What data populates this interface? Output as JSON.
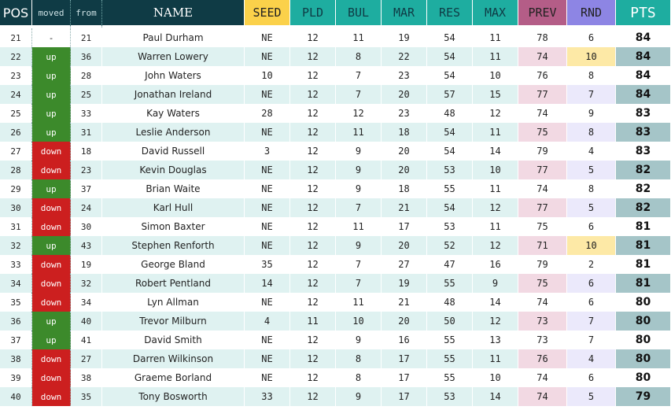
{
  "headers": {
    "pos": "POS",
    "moved": "moved",
    "from": "from",
    "name": "NAME",
    "seed": "SEED",
    "pld": "PLD",
    "bul": "BUL",
    "mar": "MAR",
    "res": "RES",
    "max": "MAX",
    "prev": "PREV",
    "rnd": "RND",
    "pts": "PTS"
  },
  "colors": {
    "header_dark": "#0f3b45",
    "seed": "#fbd14a",
    "teal": "#1eada0",
    "prev": "#b45d87",
    "rnd": "#8d85e4",
    "up": "#3c8a2b",
    "down": "#cc1f1f",
    "row_alt": "#dff2f1",
    "rnd_highlight": "#fde9a6"
  },
  "rows": [
    {
      "pos": "21",
      "moved": "-",
      "from": "21",
      "name": "Paul Durham",
      "seed": "NE",
      "pld": "12",
      "bul": "11",
      "mar": "19",
      "res": "54",
      "max": "11",
      "prev": "78",
      "rnd": "6",
      "pts": "84"
    },
    {
      "pos": "22",
      "moved": "up",
      "from": "36",
      "name": "Warren Lowery",
      "seed": "NE",
      "pld": "12",
      "bul": "8",
      "mar": "22",
      "res": "54",
      "max": "11",
      "prev": "74",
      "rnd": "10",
      "pts": "84"
    },
    {
      "pos": "23",
      "moved": "up",
      "from": "28",
      "name": "John Waters",
      "seed": "10",
      "pld": "12",
      "bul": "7",
      "mar": "23",
      "res": "54",
      "max": "10",
      "prev": "76",
      "rnd": "8",
      "pts": "84"
    },
    {
      "pos": "24",
      "moved": "up",
      "from": "25",
      "name": "Jonathan Ireland",
      "seed": "NE",
      "pld": "12",
      "bul": "7",
      "mar": "20",
      "res": "57",
      "max": "15",
      "prev": "77",
      "rnd": "7",
      "pts": "84"
    },
    {
      "pos": "25",
      "moved": "up",
      "from": "33",
      "name": "Kay Waters",
      "seed": "28",
      "pld": "12",
      "bul": "12",
      "mar": "23",
      "res": "48",
      "max": "12",
      "prev": "74",
      "rnd": "9",
      "pts": "83"
    },
    {
      "pos": "26",
      "moved": "up",
      "from": "31",
      "name": "Leslie Anderson",
      "seed": "NE",
      "pld": "12",
      "bul": "11",
      "mar": "18",
      "res": "54",
      "max": "11",
      "prev": "75",
      "rnd": "8",
      "pts": "83"
    },
    {
      "pos": "27",
      "moved": "down",
      "from": "18",
      "name": "David Russell",
      "seed": "3",
      "pld": "12",
      "bul": "9",
      "mar": "20",
      "res": "54",
      "max": "14",
      "prev": "79",
      "rnd": "4",
      "pts": "83"
    },
    {
      "pos": "28",
      "moved": "down",
      "from": "23",
      "name": "Kevin Douglas",
      "seed": "NE",
      "pld": "12",
      "bul": "9",
      "mar": "20",
      "res": "53",
      "max": "10",
      "prev": "77",
      "rnd": "5",
      "pts": "82"
    },
    {
      "pos": "29",
      "moved": "up",
      "from": "37",
      "name": "Brian Waite",
      "seed": "NE",
      "pld": "12",
      "bul": "9",
      "mar": "18",
      "res": "55",
      "max": "11",
      "prev": "74",
      "rnd": "8",
      "pts": "82"
    },
    {
      "pos": "30",
      "moved": "down",
      "from": "24",
      "name": "Karl Hull",
      "seed": "NE",
      "pld": "12",
      "bul": "7",
      "mar": "21",
      "res": "54",
      "max": "12",
      "prev": "77",
      "rnd": "5",
      "pts": "82"
    },
    {
      "pos": "31",
      "moved": "down",
      "from": "30",
      "name": "Simon Baxter",
      "seed": "NE",
      "pld": "12",
      "bul": "11",
      "mar": "17",
      "res": "53",
      "max": "11",
      "prev": "75",
      "rnd": "6",
      "pts": "81"
    },
    {
      "pos": "32",
      "moved": "up",
      "from": "43",
      "name": "Stephen Renforth",
      "seed": "NE",
      "pld": "12",
      "bul": "9",
      "mar": "20",
      "res": "52",
      "max": "12",
      "prev": "71",
      "rnd": "10",
      "pts": "81"
    },
    {
      "pos": "33",
      "moved": "down",
      "from": "19",
      "name": "George Bland",
      "seed": "35",
      "pld": "12",
      "bul": "7",
      "mar": "27",
      "res": "47",
      "max": "16",
      "prev": "79",
      "rnd": "2",
      "pts": "81"
    },
    {
      "pos": "34",
      "moved": "down",
      "from": "32",
      "name": "Robert Pentland",
      "seed": "14",
      "pld": "12",
      "bul": "7",
      "mar": "19",
      "res": "55",
      "max": "9",
      "prev": "75",
      "rnd": "6",
      "pts": "81"
    },
    {
      "pos": "35",
      "moved": "down",
      "from": "34",
      "name": "Lyn Allman",
      "seed": "NE",
      "pld": "12",
      "bul": "11",
      "mar": "21",
      "res": "48",
      "max": "14",
      "prev": "74",
      "rnd": "6",
      "pts": "80"
    },
    {
      "pos": "36",
      "moved": "up",
      "from": "40",
      "name": "Trevor Milburn",
      "seed": "4",
      "pld": "11",
      "bul": "10",
      "mar": "20",
      "res": "50",
      "max": "12",
      "prev": "73",
      "rnd": "7",
      "pts": "80"
    },
    {
      "pos": "37",
      "moved": "up",
      "from": "41",
      "name": "David Smith",
      "seed": "NE",
      "pld": "12",
      "bul": "9",
      "mar": "16",
      "res": "55",
      "max": "13",
      "prev": "73",
      "rnd": "7",
      "pts": "80"
    },
    {
      "pos": "38",
      "moved": "down",
      "from": "27",
      "name": "Darren Wilkinson",
      "seed": "NE",
      "pld": "12",
      "bul": "8",
      "mar": "17",
      "res": "55",
      "max": "11",
      "prev": "76",
      "rnd": "4",
      "pts": "80"
    },
    {
      "pos": "39",
      "moved": "down",
      "from": "38",
      "name": "Graeme Borland",
      "seed": "NE",
      "pld": "12",
      "bul": "8",
      "mar": "17",
      "res": "55",
      "max": "10",
      "prev": "74",
      "rnd": "6",
      "pts": "80"
    },
    {
      "pos": "40",
      "moved": "down",
      "from": "35",
      "name": "Tony Bosworth",
      "seed": "33",
      "pld": "12",
      "bul": "9",
      "mar": "17",
      "res": "53",
      "max": "14",
      "prev": "74",
      "rnd": "5",
      "pts": "79"
    }
  ]
}
